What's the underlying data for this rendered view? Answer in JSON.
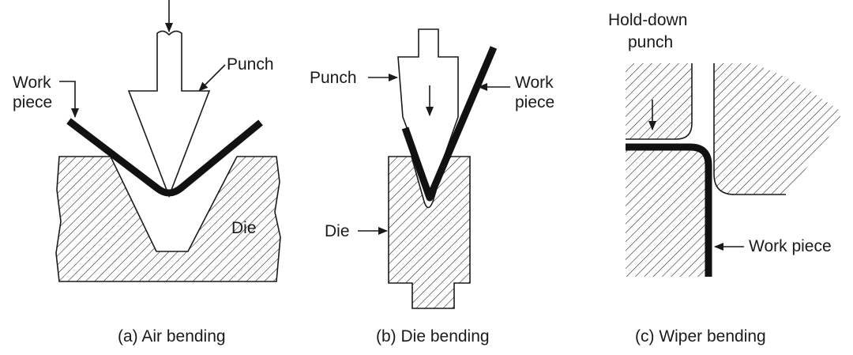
{
  "panels": {
    "air": {
      "caption": "(a) Air bending",
      "punch_label": "Punch",
      "workpiece_label_1": "Work",
      "workpiece_label_2": "piece",
      "die_label": "Die"
    },
    "die": {
      "caption": "(b) Die bending",
      "punch_label": "Punch",
      "workpiece_label_1": "Work",
      "workpiece_label_2": "piece",
      "die_label": "Die"
    },
    "wiper": {
      "caption": "(c) Wiper bending",
      "holddown_label_1": "Hold-down",
      "holddown_label_2": "punch",
      "workpiece_label": "Work piece"
    }
  },
  "colors": {
    "ink": "#1a1a1a",
    "paper": "#ffffff"
  }
}
